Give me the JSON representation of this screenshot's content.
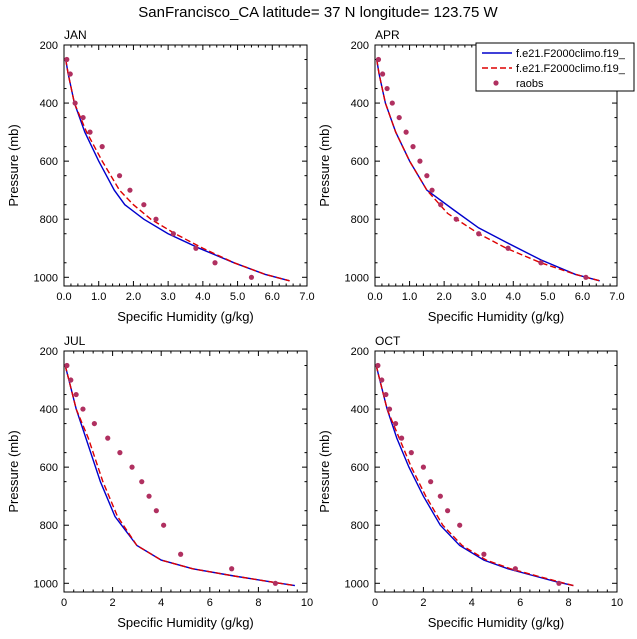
{
  "title": "SanFrancisco_CA  latitude= 37 N longitude= 123.75 W",
  "colors": {
    "model1": "#0000cc",
    "model2": "#dd0000",
    "raobs": "#b03060",
    "axis": "#000000"
  },
  "legend": {
    "placement": "top-right of APR panel",
    "entries": [
      {
        "label": "f.e21.F2000climo.f19_",
        "style": "solid"
      },
      {
        "label": "f.e21.F2000climo.f19_",
        "style": "dashed"
      },
      {
        "label": "raobs",
        "style": "dot"
      }
    ]
  },
  "chart_data": [
    {
      "type": "line",
      "panel": "JAN",
      "xlabel": "Specific Humidity (g/kg)",
      "ylabel": "Pressure (mb)",
      "xlim": [
        0,
        7
      ],
      "ylim": [
        200,
        1030
      ],
      "xticks": [
        0,
        1,
        2,
        3,
        4,
        5,
        6,
        7
      ],
      "xtick_labels": [
        "0.0",
        "1.0",
        "2.0",
        "3.0",
        "4.0",
        "5.0",
        "6.0",
        "7.0"
      ],
      "yticks": [
        200,
        400,
        600,
        800,
        1000
      ],
      "series": [
        {
          "name": "f.e21.F2000climo.f19_ (solid)",
          "x": [
            0.05,
            0.12,
            0.3,
            0.6,
            1.0,
            1.45,
            1.75,
            2.3,
            3.0,
            3.9,
            4.9,
            5.8,
            6.5
          ],
          "p": [
            250,
            300,
            400,
            500,
            600,
            700,
            750,
            800,
            850,
            900,
            950,
            990,
            1012
          ]
        },
        {
          "name": "f.e21.F2000climo.f19_ (dashed)",
          "x": [
            0.05,
            0.12,
            0.3,
            0.65,
            1.1,
            1.6,
            2.0,
            2.5,
            3.2,
            4.0,
            4.9,
            5.8,
            6.5
          ],
          "p": [
            250,
            300,
            400,
            500,
            600,
            700,
            750,
            800,
            850,
            900,
            950,
            990,
            1012
          ]
        },
        {
          "name": "raobs",
          "x": [
            0.08,
            0.18,
            0.32,
            0.55,
            0.75,
            1.1,
            1.6,
            1.9,
            2.3,
            2.65,
            3.15,
            3.8,
            4.35,
            5.4
          ],
          "p": [
            250,
            300,
            400,
            450,
            500,
            550,
            650,
            700,
            750,
            800,
            850,
            900,
            950,
            1000
          ]
        }
      ]
    },
    {
      "type": "line",
      "panel": "APR",
      "xlabel": "Specific Humidity (g/kg)",
      "ylabel": "Pressure (mb)",
      "xlim": [
        0,
        7
      ],
      "ylim": [
        200,
        1030
      ],
      "xticks": [
        0,
        1,
        2,
        3,
        4,
        5,
        6,
        7
      ],
      "xtick_labels": [
        "0.0",
        "1.0",
        "2.0",
        "3.0",
        "4.0",
        "5.0",
        "6.0",
        "7.0"
      ],
      "yticks": [
        200,
        400,
        600,
        800,
        1000
      ],
      "series": [
        {
          "name": "f.e21.F2000climo.f19_ (solid)",
          "x": [
            0.05,
            0.12,
            0.3,
            0.6,
            1.0,
            1.5,
            2.3,
            3.0,
            3.8,
            4.8,
            5.8,
            6.5
          ],
          "p": [
            250,
            300,
            400,
            500,
            600,
            700,
            770,
            830,
            880,
            940,
            990,
            1012
          ]
        },
        {
          "name": "f.e21.F2000climo.f19_ (dashed)",
          "x": [
            0.05,
            0.12,
            0.3,
            0.6,
            1.0,
            1.5,
            2.1,
            3.0,
            3.8,
            4.8,
            5.8,
            6.5
          ],
          "p": [
            250,
            300,
            400,
            500,
            600,
            700,
            780,
            850,
            900,
            950,
            990,
            1012
          ]
        },
        {
          "name": "raobs",
          "x": [
            0.1,
            0.22,
            0.35,
            0.5,
            0.7,
            0.9,
            1.1,
            1.3,
            1.5,
            1.65,
            1.9,
            2.35,
            3.0,
            3.85,
            4.8,
            6.1
          ],
          "p": [
            250,
            300,
            350,
            400,
            450,
            500,
            550,
            600,
            650,
            700,
            750,
            800,
            850,
            900,
            950,
            1000
          ]
        }
      ]
    },
    {
      "type": "line",
      "panel": "JUL",
      "xlabel": "Specific Humidity (g/kg)",
      "ylabel": "Pressure (mb)",
      "xlim": [
        0,
        10
      ],
      "ylim": [
        200,
        1030
      ],
      "xticks": [
        0,
        2,
        4,
        6,
        8,
        10
      ],
      "xtick_labels": [
        "0",
        "2",
        "4",
        "6",
        "8",
        "10"
      ],
      "yticks": [
        200,
        400,
        600,
        800,
        1000
      ],
      "series": [
        {
          "name": "f.e21.F2000climo.f19_ (solid)",
          "x": [
            0.05,
            0.2,
            0.5,
            0.9,
            1.5,
            2.1,
            3.0,
            4.0,
            5.3,
            7.0,
            8.5,
            9.5
          ],
          "p": [
            250,
            300,
            400,
            500,
            650,
            770,
            870,
            920,
            950,
            975,
            995,
            1008
          ]
        },
        {
          "name": "f.e21.F2000climo.f19_ (dashed)",
          "x": [
            0.05,
            0.2,
            0.5,
            1.0,
            1.6,
            2.2,
            3.0,
            4.0,
            5.3,
            7.0,
            8.5,
            9.5
          ],
          "p": [
            250,
            300,
            400,
            500,
            650,
            770,
            870,
            920,
            950,
            975,
            995,
            1008
          ]
        },
        {
          "name": "raobs",
          "x": [
            0.12,
            0.28,
            0.5,
            0.78,
            1.25,
            1.8,
            2.3,
            2.8,
            3.2,
            3.5,
            3.8,
            4.1,
            4.8,
            6.9,
            8.7
          ],
          "p": [
            250,
            300,
            350,
            400,
            450,
            500,
            550,
            600,
            650,
            700,
            750,
            800,
            900,
            950,
            1000
          ]
        }
      ]
    },
    {
      "type": "line",
      "panel": "OCT",
      "xlabel": "Specific Humidity (g/kg)",
      "ylabel": "Pressure (mb)",
      "xlim": [
        0,
        10
      ],
      "ylim": [
        200,
        1030
      ],
      "xticks": [
        0,
        2,
        4,
        6,
        8,
        10
      ],
      "xtick_labels": [
        "0",
        "2",
        "4",
        "6",
        "8",
        "10"
      ],
      "yticks": [
        200,
        400,
        600,
        800,
        1000
      ],
      "series": [
        {
          "name": "f.e21.F2000climo.f19_ (solid)",
          "x": [
            0.05,
            0.2,
            0.5,
            0.9,
            1.4,
            2.0,
            2.7,
            3.5,
            4.5,
            5.5,
            6.6,
            7.5,
            8.2
          ],
          "p": [
            250,
            300,
            400,
            500,
            600,
            700,
            800,
            870,
            920,
            950,
            975,
            995,
            1008
          ]
        },
        {
          "name": "f.e21.F2000climo.f19_ (dashed)",
          "x": [
            0.05,
            0.2,
            0.5,
            1.0,
            1.5,
            2.1,
            2.8,
            3.6,
            4.6,
            5.6,
            6.7,
            7.6,
            8.2
          ],
          "p": [
            250,
            300,
            400,
            500,
            600,
            700,
            800,
            870,
            920,
            950,
            975,
            995,
            1008
          ]
        },
        {
          "name": "raobs",
          "x": [
            0.12,
            0.28,
            0.45,
            0.6,
            0.85,
            1.1,
            1.5,
            2.0,
            2.3,
            2.7,
            3.0,
            3.5,
            4.5,
            5.8,
            7.6
          ],
          "p": [
            250,
            300,
            350,
            400,
            450,
            500,
            550,
            600,
            650,
            700,
            750,
            800,
            900,
            950,
            1000
          ]
        }
      ]
    }
  ]
}
